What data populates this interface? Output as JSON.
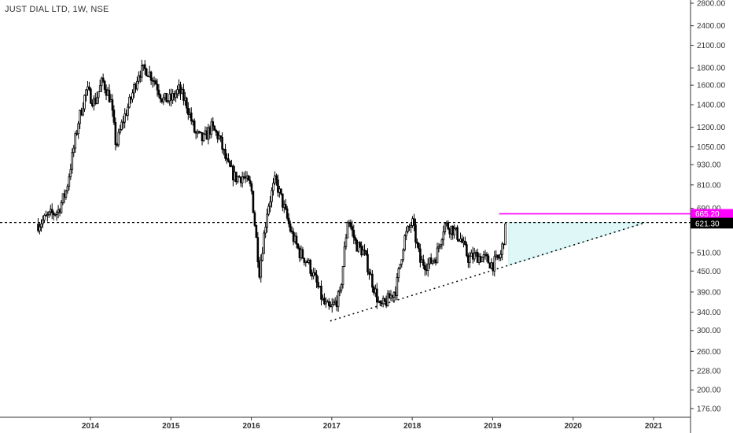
{
  "header": {
    "title": "JUST DIAL LTD, 1W, NSE"
  },
  "colors": {
    "candle": "#000000",
    "resistance_line": "#ff00ff",
    "projection_fill": "#e0f7f7",
    "price_tag_bg": "#000000",
    "resistance_tag_bg": "#ff00ff"
  },
  "chart_data": {
    "type": "candlestick",
    "title": "JUST DIAL LTD, 1W, NSE",
    "timeframe": "1W",
    "y_scale": "log",
    "x_range": [
      2013.35,
      2021.4
    ],
    "y_range": [
      160,
      2850
    ],
    "x_ticks": [
      "2014",
      "2015",
      "2016",
      "2017",
      "2018",
      "2019",
      "2020",
      "2021"
    ],
    "x_tick_values": [
      2014,
      2015,
      2016,
      2017,
      2018,
      2019,
      2020,
      2021
    ],
    "y_ticks": [
      "2800.00",
      "2400.00",
      "2100.00",
      "1800.00",
      "1600.00",
      "1400.00",
      "1200.00",
      "1050.00",
      "930.00",
      "810.00",
      "690.00",
      "510.00",
      "450.00",
      "390.00",
      "340.00",
      "300.00",
      "260.00",
      "228.00",
      "200.00",
      "176.00"
    ],
    "y_tick_values": [
      2800,
      2400,
      2100,
      1800,
      1600,
      1400,
      1200,
      1050,
      930,
      810,
      690,
      510,
      450,
      390,
      340,
      300,
      260,
      228,
      200,
      176
    ],
    "price_path": [
      [
        2013.35,
        620
      ],
      [
        2013.5,
        660
      ],
      [
        2013.6,
        680
      ],
      [
        2013.7,
        780
      ],
      [
        2013.78,
        1000
      ],
      [
        2013.85,
        1250
      ],
      [
        2013.95,
        1550
      ],
      [
        2014.05,
        1420
      ],
      [
        2014.15,
        1650
      ],
      [
        2014.25,
        1450
      ],
      [
        2014.32,
        1050
      ],
      [
        2014.4,
        1250
      ],
      [
        2014.5,
        1450
      ],
      [
        2014.6,
        1750
      ],
      [
        2014.7,
        1780
      ],
      [
        2014.8,
        1650
      ],
      [
        2014.9,
        1450
      ],
      [
        2015.0,
        1450
      ],
      [
        2015.1,
        1550
      ],
      [
        2015.2,
        1400
      ],
      [
        2015.3,
        1150
      ],
      [
        2015.4,
        1100
      ],
      [
        2015.5,
        1200
      ],
      [
        2015.6,
        1120
      ],
      [
        2015.7,
        930
      ],
      [
        2015.8,
        850
      ],
      [
        2015.9,
        860
      ],
      [
        2016.0,
        790
      ],
      [
        2016.1,
        450
      ],
      [
        2016.2,
        690
      ],
      [
        2016.3,
        840
      ],
      [
        2016.4,
        700
      ],
      [
        2016.5,
        580
      ],
      [
        2016.6,
        510
      ],
      [
        2016.7,
        480
      ],
      [
        2016.8,
        420
      ],
      [
        2016.9,
        360
      ],
      [
        2016.98,
        345
      ],
      [
        2017.1,
        380
      ],
      [
        2017.2,
        650
      ],
      [
        2017.3,
        540
      ],
      [
        2017.4,
        510
      ],
      [
        2017.5,
        420
      ],
      [
        2017.6,
        350
      ],
      [
        2017.7,
        370
      ],
      [
        2017.8,
        400
      ],
      [
        2017.9,
        560
      ],
      [
        2018.0,
        630
      ],
      [
        2018.1,
        480
      ],
      [
        2018.2,
        470
      ],
      [
        2018.3,
        500
      ],
      [
        2018.4,
        620
      ],
      [
        2018.5,
        600
      ],
      [
        2018.6,
        560
      ],
      [
        2018.7,
        490
      ],
      [
        2018.8,
        500
      ],
      [
        2018.9,
        490
      ],
      [
        2019.0,
        470
      ],
      [
        2019.1,
        500
      ],
      [
        2019.17,
        621.3
      ]
    ],
    "annotations": {
      "horizontal_level": {
        "value": 626.6,
        "label": "626.60",
        "style": "dashed"
      },
      "resistance_level": {
        "value": 665.2,
        "label": "665.20"
      },
      "last_price": {
        "value": 621.3,
        "label": "621.30"
      },
      "rising_trendline": {
        "from": [
          2016.98,
          320
        ],
        "to": [
          2020.9,
          626.6
        ],
        "style": "dotted"
      },
      "projection_triangle": {
        "from_x": 2019.2,
        "to_x": 2020.9
      }
    }
  }
}
